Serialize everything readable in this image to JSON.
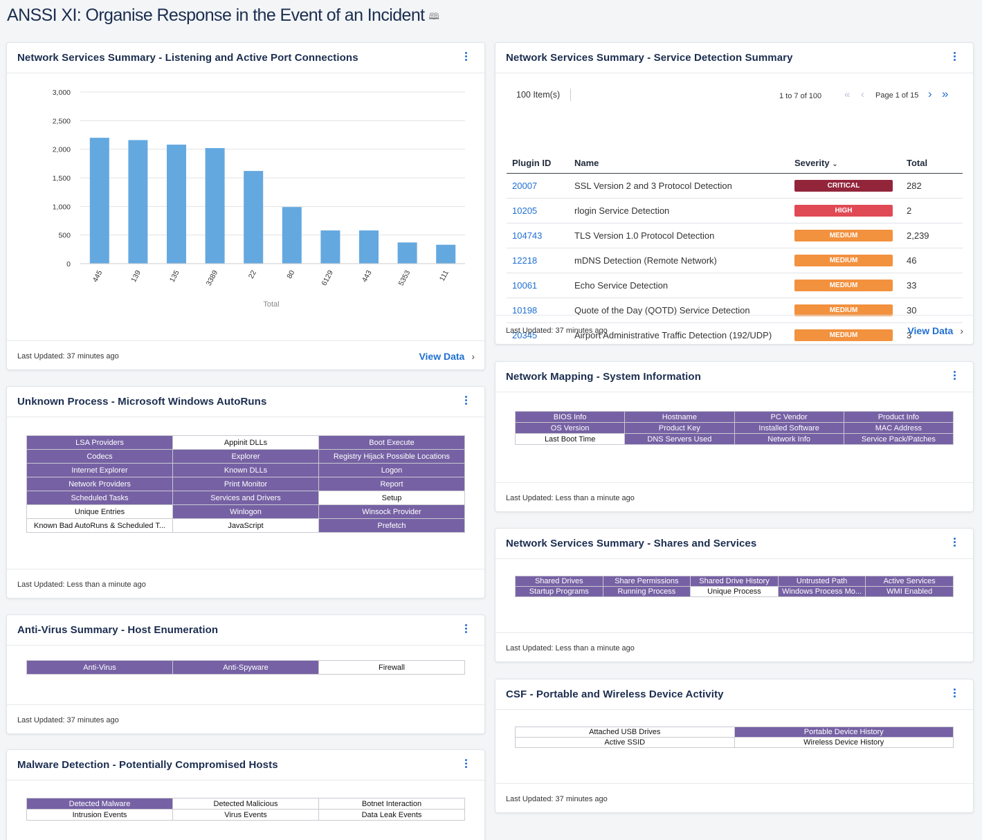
{
  "page": {
    "title": "ANSSI XI: Organise Response in the Event of an Incident",
    "icon": "book-icon"
  },
  "colors": {
    "purple": "#7661a4",
    "bar": "#64a8e0",
    "critical": "#93253b",
    "high": "#e04a55",
    "medium": "#f2913e",
    "link": "#1f6fd1"
  },
  "portChart": {
    "title": "Network Services Summary - Listening and Active Port Connections",
    "updated": "Last Updated: 37 minutes ago",
    "view_data": "View Data"
  },
  "chart_data": {
    "type": "bar",
    "categories": [
      "445",
      "139",
      "135",
      "3389",
      "22",
      "80",
      "6129",
      "443",
      "5353",
      "111"
    ],
    "values": [
      2200,
      2160,
      2080,
      2020,
      1620,
      990,
      580,
      580,
      370,
      330
    ],
    "ylim": [
      0,
      3000
    ],
    "yticks": [
      "0",
      "500",
      "1,000",
      "1,500",
      "2,000",
      "2,500",
      "3,000"
    ],
    "ytick_values": [
      0,
      500,
      1000,
      1500,
      2000,
      2500,
      3000
    ],
    "xlabel": "Total",
    "ylabel": "",
    "title": ""
  },
  "serviceDetection": {
    "title": "Network Services Summary - Service Detection Summary",
    "items": "100 Item(s)",
    "range": "1 to 7 of 100",
    "page": "Page 1 of 15",
    "headers": {
      "plugin": "Plugin ID",
      "name": "Name",
      "severity": "Severity",
      "total": "Total"
    },
    "rows": [
      {
        "id": "20007",
        "name": "SSL Version 2 and 3 Protocol Detection",
        "severity": "CRITICAL",
        "total": "282"
      },
      {
        "id": "10205",
        "name": "rlogin Service Detection",
        "severity": "HIGH",
        "total": "2"
      },
      {
        "id": "104743",
        "name": "TLS Version 1.0 Protocol Detection",
        "severity": "MEDIUM",
        "total": "2,239"
      },
      {
        "id": "12218",
        "name": "mDNS Detection (Remote Network)",
        "severity": "MEDIUM",
        "total": "46"
      },
      {
        "id": "10061",
        "name": "Echo Service Detection",
        "severity": "MEDIUM",
        "total": "33"
      },
      {
        "id": "10198",
        "name": "Quote of the Day (QOTD) Service Detection",
        "severity": "MEDIUM",
        "total": "30"
      },
      {
        "id": "20345",
        "name": "Airport Administrative Traffic Detection (192/UDP)",
        "severity": "MEDIUM",
        "total": "3"
      }
    ],
    "updated": "Last Updated: 37 minutes ago",
    "view_data": "View Data"
  },
  "autoRuns": {
    "title": "Unknown Process - Microsoft Windows AutoRuns",
    "updated": "Last Updated: Less than a minute ago",
    "cells": [
      [
        {
          "t": "LSA Providers",
          "p": true
        },
        {
          "t": "Appinit DLLs",
          "p": false
        },
        {
          "t": "Boot Execute",
          "p": true
        }
      ],
      [
        {
          "t": "Codecs",
          "p": true
        },
        {
          "t": "Explorer",
          "p": true
        },
        {
          "t": "Registry Hijack Possible Locations",
          "p": true
        }
      ],
      [
        {
          "t": "Internet Explorer",
          "p": true
        },
        {
          "t": "Known DLLs",
          "p": true
        },
        {
          "t": "Logon",
          "p": true
        }
      ],
      [
        {
          "t": "Network Providers",
          "p": true
        },
        {
          "t": "Print Monitor",
          "p": true
        },
        {
          "t": "Report",
          "p": true
        }
      ],
      [
        {
          "t": "Scheduled Tasks",
          "p": true
        },
        {
          "t": "Services and Drivers",
          "p": true
        },
        {
          "t": "Setup",
          "p": false
        }
      ],
      [
        {
          "t": "Unique Entries",
          "p": false
        },
        {
          "t": "Winlogon",
          "p": true
        },
        {
          "t": "Winsock Provider",
          "p": true
        }
      ],
      [
        {
          "t": "Known Bad AutoRuns & Scheduled T...",
          "p": false
        },
        {
          "t": "JavaScript",
          "p": false
        },
        {
          "t": "Prefetch",
          "p": true
        }
      ]
    ]
  },
  "antiVirus": {
    "title": "Anti-Virus Summary - Host Enumeration",
    "updated": "Last Updated: 37 minutes ago",
    "cells": [
      [
        {
          "t": "Anti-Virus",
          "p": true
        },
        {
          "t": "Anti-Spyware",
          "p": true
        },
        {
          "t": "Firewall",
          "p": false
        }
      ]
    ]
  },
  "malware": {
    "title": "Malware Detection - Potentially Compromised Hosts",
    "cells": [
      [
        {
          "t": "Detected Malware",
          "p": true
        },
        {
          "t": "Detected Malicious",
          "p": false
        },
        {
          "t": "Botnet Interaction",
          "p": false
        }
      ],
      [
        {
          "t": "Intrusion Events",
          "p": false
        },
        {
          "t": "Virus Events",
          "p": false
        },
        {
          "t": "Data Leak Events",
          "p": false
        }
      ]
    ]
  },
  "systemInfo": {
    "title": "Network Mapping - System Information",
    "updated": "Last Updated: Less than a minute ago",
    "cells": [
      [
        {
          "t": "BIOS Info",
          "p": true
        },
        {
          "t": "Hostname",
          "p": true
        },
        {
          "t": "PC Vendor",
          "p": true
        },
        {
          "t": "Product Info",
          "p": true
        }
      ],
      [
        {
          "t": "OS Version",
          "p": true
        },
        {
          "t": "Product Key",
          "p": true
        },
        {
          "t": "Installed Software",
          "p": true
        },
        {
          "t": "MAC Address",
          "p": true
        }
      ],
      [
        {
          "t": "Last Boot Time",
          "p": false
        },
        {
          "t": "DNS Servers Used",
          "p": true
        },
        {
          "t": "Network Info",
          "p": true
        },
        {
          "t": "Service Pack/Patches",
          "p": true
        }
      ]
    ]
  },
  "shares": {
    "title": "Network Services Summary - Shares and Services",
    "updated": "Last Updated: Less than a minute ago",
    "cells": [
      [
        {
          "t": "Shared Drives",
          "p": true
        },
        {
          "t": "Share Permissions",
          "p": true
        },
        {
          "t": "Shared Drive History",
          "p": true
        },
        {
          "t": "Untrusted Path",
          "p": true
        },
        {
          "t": "Active Services",
          "p": true
        }
      ],
      [
        {
          "t": "Startup Programs",
          "p": true
        },
        {
          "t": "Running Process",
          "p": true
        },
        {
          "t": "Unique Process",
          "p": false
        },
        {
          "t": "Windows Process Mo...",
          "p": true
        },
        {
          "t": "WMI Enabled",
          "p": true
        }
      ]
    ]
  },
  "portable": {
    "title": "CSF - Portable and Wireless Device Activity",
    "updated": "Last Updated: 37 minutes ago",
    "cells": [
      [
        {
          "t": "Attached USB Drives",
          "p": false
        },
        {
          "t": "Portable Device History",
          "p": true
        }
      ],
      [
        {
          "t": "Active SSID",
          "p": false
        },
        {
          "t": "Wireless Device History",
          "p": false
        }
      ]
    ]
  }
}
